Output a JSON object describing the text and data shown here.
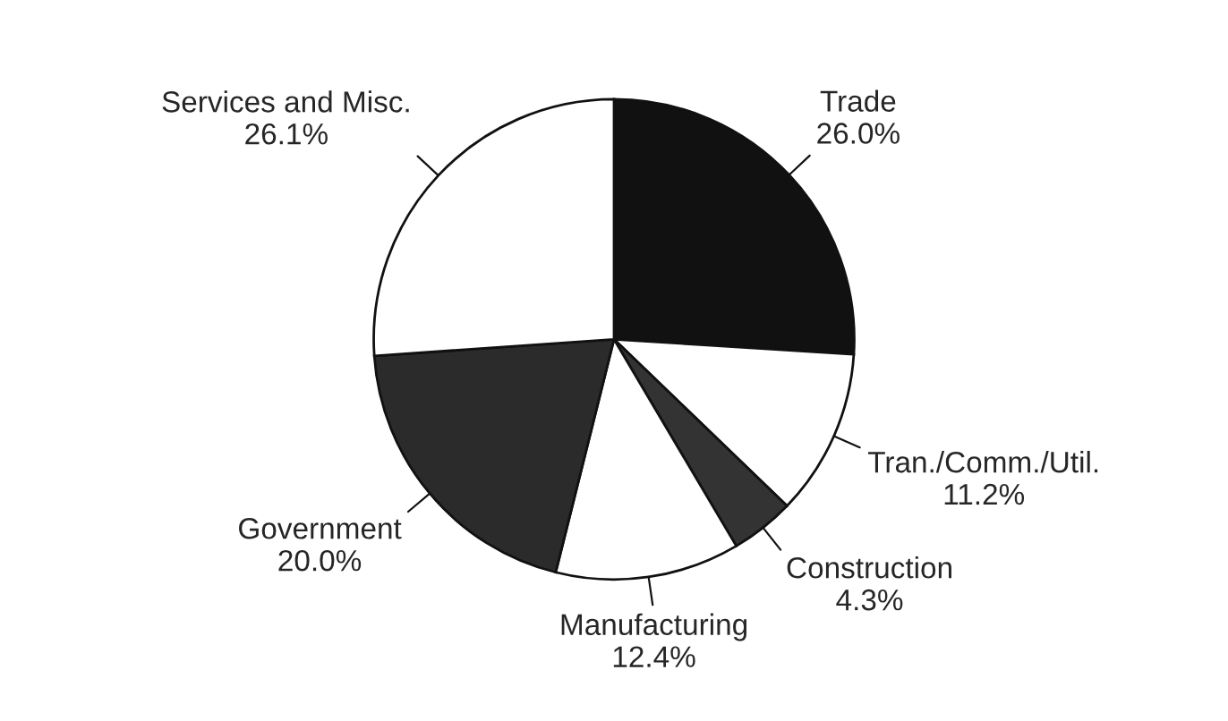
{
  "chart_data": {
    "type": "pie",
    "categories": [
      "Trade",
      "Tran./Comm./Util.",
      "Construction",
      "Manufacturing",
      "Government",
      "Services and Misc."
    ],
    "values": [
      26.0,
      11.2,
      4.3,
      12.4,
      20.0,
      26.1
    ],
    "value_labels": [
      "26.0%",
      "11.2%",
      "4.3%",
      "12.4%",
      "20.0%",
      "26.1%"
    ],
    "colors": [
      "#111111",
      "#ffffff",
      "#333333",
      "#ffffff",
      "#2b2b2b",
      "#ffffff"
    ],
    "legend": false
  }
}
